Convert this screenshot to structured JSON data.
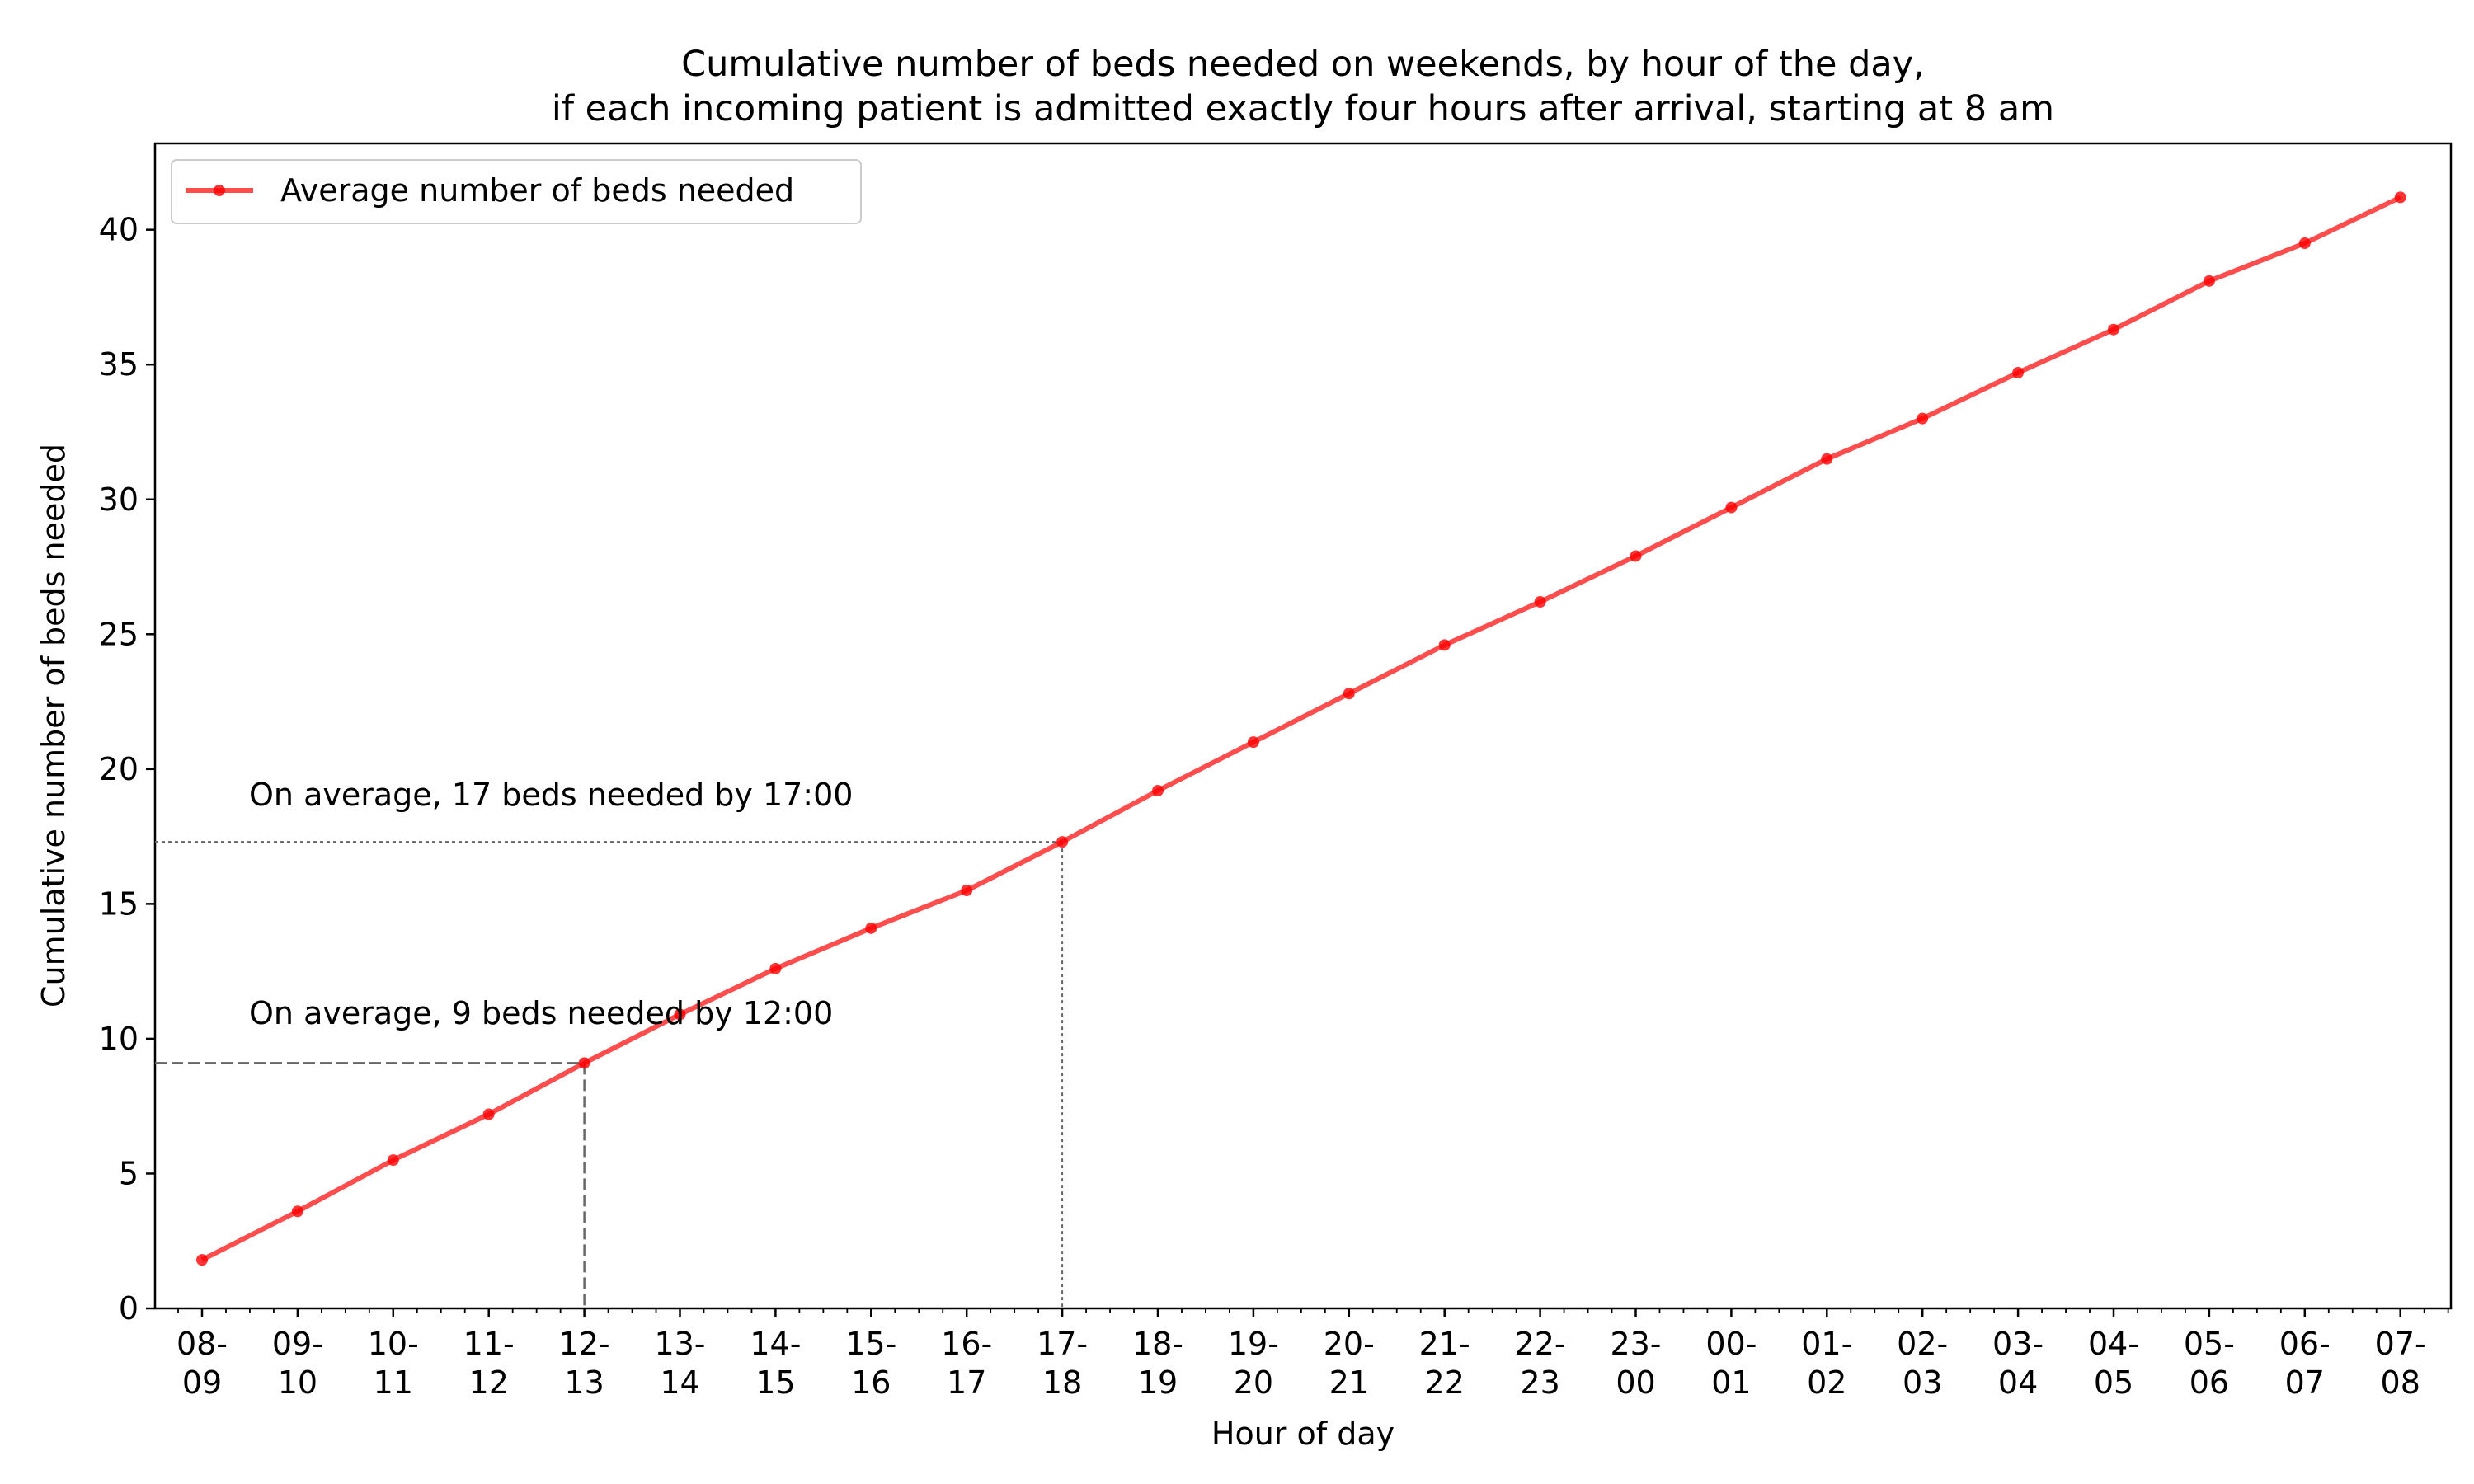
{
  "chart_data": {
    "type": "line",
    "title": [
      "Cumulative number of beds needed on weekends, by hour of the day,",
      "if each incoming patient is admitted exactly four hours after arrival, starting at 8 am"
    ],
    "xlabel": "Hour of day",
    "ylabel": "Cumulative number of beds needed",
    "ylim": [
      0,
      43.2
    ],
    "yticks": [
      0,
      5,
      10,
      15,
      20,
      25,
      30,
      35,
      40
    ],
    "categories": [
      [
        "08-",
        "09"
      ],
      [
        "09-",
        "10"
      ],
      [
        "10-",
        "11"
      ],
      [
        "11-",
        "12"
      ],
      [
        "12-",
        "13"
      ],
      [
        "13-",
        "14"
      ],
      [
        "14-",
        "15"
      ],
      [
        "15-",
        "16"
      ],
      [
        "16-",
        "17"
      ],
      [
        "17-",
        "18"
      ],
      [
        "18-",
        "19"
      ],
      [
        "19-",
        "20"
      ],
      [
        "20-",
        "21"
      ],
      [
        "21-",
        "22"
      ],
      [
        "22-",
        "23"
      ],
      [
        "23-",
        "00"
      ],
      [
        "00-",
        "01"
      ],
      [
        "01-",
        "02"
      ],
      [
        "02-",
        "03"
      ],
      [
        "03-",
        "04"
      ],
      [
        "04-",
        "05"
      ],
      [
        "05-",
        "06"
      ],
      [
        "06-",
        "07"
      ],
      [
        "07-",
        "08"
      ]
    ],
    "series": [
      {
        "name": "Average number of beds needed",
        "color": "#ff0000",
        "values": [
          1.8,
          3.6,
          5.5,
          7.2,
          9.1,
          10.9,
          12.6,
          14.1,
          15.5,
          17.3,
          19.2,
          21.0,
          22.8,
          24.6,
          26.2,
          27.9,
          29.7,
          31.5,
          33.0,
          34.7,
          36.3,
          38.1,
          39.5,
          41.2
        ]
      }
    ],
    "annotations": [
      {
        "text": "On average, 9 beds needed by 12:00",
        "x_index": 4,
        "y": 9.1,
        "style": "dashed"
      },
      {
        "text": "On average, 17 beds needed by 17:00",
        "x_index": 9,
        "y": 17.3,
        "style": "dotted"
      }
    ],
    "legend": {
      "placement": "top-left"
    },
    "grid": false
  }
}
